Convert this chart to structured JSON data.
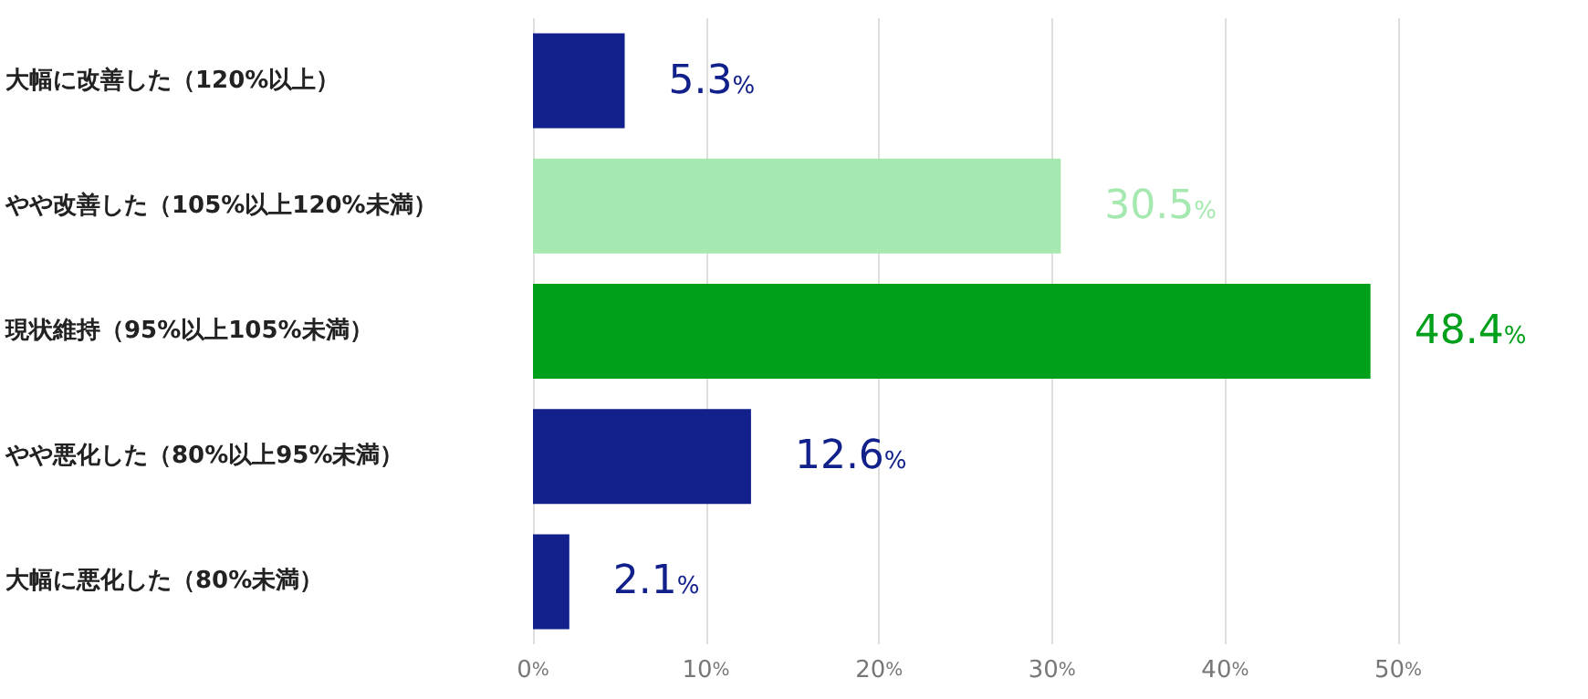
{
  "chart_data": {
    "type": "bar",
    "orientation": "horizontal",
    "categories": [
      "大幅に改善した（120%以上）",
      "やや改善した（105%以上120%未満）",
      "現状維持（95%以上105%未満）",
      "やや悪化した（80%以上95%未満）",
      "大幅に悪化した（80%未満）"
    ],
    "values": [
      5.3,
      30.5,
      48.4,
      12.6,
      2.1
    ],
    "colors": [
      "#11208a",
      "#a6e9b0",
      "#00a01a",
      "#11208a",
      "#11208a"
    ],
    "value_labels": [
      "5.3%",
      "30.5%",
      "48.4%",
      "12.6%",
      "2.1%"
    ],
    "xlim": [
      0,
      50
    ],
    "xticks": [
      {
        "value": 0,
        "label": "0%"
      },
      {
        "value": 10,
        "label": "10%"
      },
      {
        "value": 20,
        "label": "20%"
      },
      {
        "value": 30,
        "label": "30%"
      },
      {
        "value": 40,
        "label": "40%"
      },
      {
        "value": 50,
        "label": "50%"
      }
    ],
    "grid": "x"
  }
}
